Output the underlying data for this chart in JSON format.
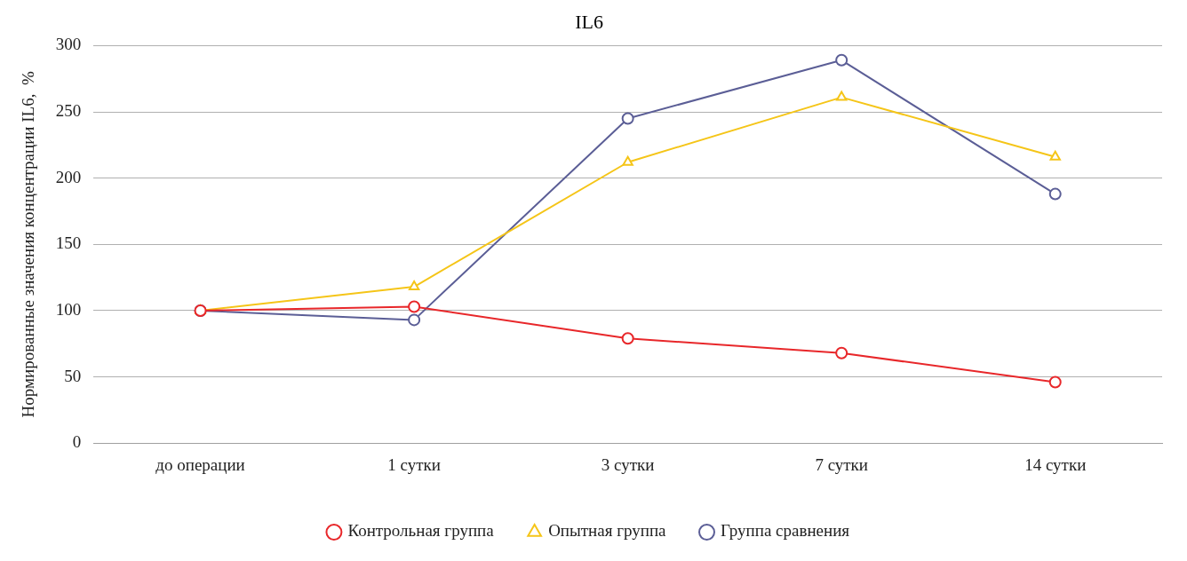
{
  "chart_data": {
    "type": "line",
    "title": "IL6",
    "ylabel": "Нормированные значения концентрации IL6,  %",
    "categories": [
      "до операции",
      "1 сутки",
      "3 сутки",
      "7 сутки",
      "14 сутки"
    ],
    "series": [
      {
        "name": "Контрольная группа",
        "color": "#e8272a",
        "marker": "circle",
        "values": [
          100,
          103,
          79,
          68,
          46
        ]
      },
      {
        "name": "Опытная группа",
        "color": "#f5c518",
        "marker": "triangle",
        "values": [
          100,
          118,
          212,
          261,
          216
        ]
      },
      {
        "name": "Группа сравнения",
        "color": "#5b5e96",
        "marker": "circle",
        "values": [
          100,
          93,
          245,
          289,
          188
        ]
      }
    ],
    "ylim": [
      0,
      300
    ],
    "yticks": [
      0,
      50,
      100,
      150,
      200,
      250,
      300
    ],
    "grid": "y",
    "legend": "bottom",
    "line_style": "solid"
  }
}
